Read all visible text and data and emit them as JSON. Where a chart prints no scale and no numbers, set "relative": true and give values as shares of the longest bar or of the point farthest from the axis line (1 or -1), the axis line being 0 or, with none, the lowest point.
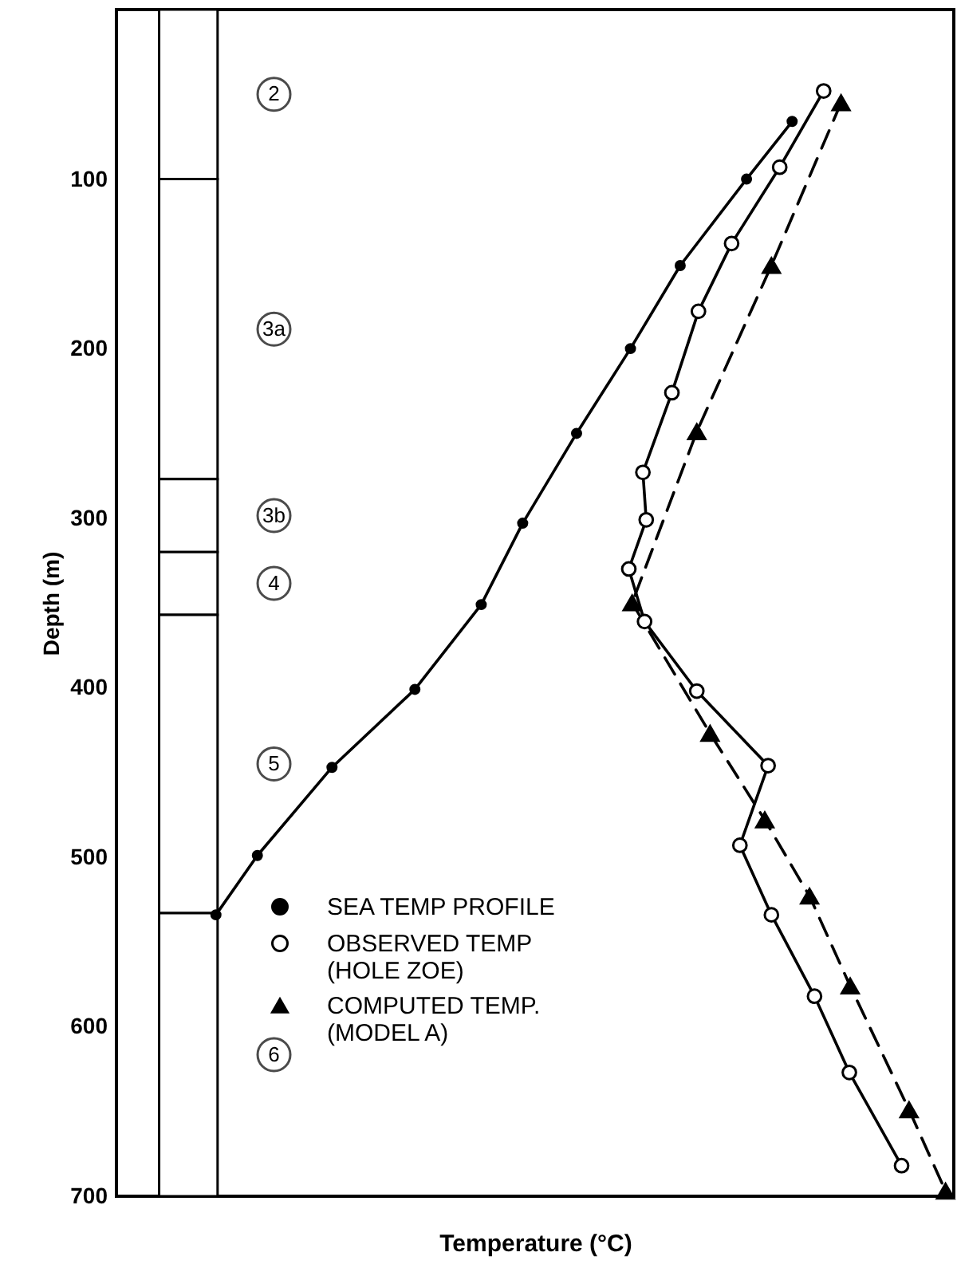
{
  "chart_data": {
    "type": "line",
    "orientation": "horizontal",
    "relative": true,
    "xlabel": "Temperature (°C)",
    "ylabel": "Depth (m)",
    "ylim": [
      700,
      0
    ],
    "yticks": [
      100,
      200,
      300,
      400,
      500,
      600,
      700
    ],
    "legend": "bottom left",
    "series": [
      {
        "name": "SEA TEMP PROFILE",
        "color": "#000000",
        "marker": "circle",
        "line_style": "solid",
        "x": [
          66,
          100,
          151,
          200,
          250,
          303,
          351,
          401,
          447,
          499,
          534
        ],
        "values": [
          0.815,
          0.76,
          0.68,
          0.62,
          0.555,
          0.49,
          0.44,
          0.36,
          0.26,
          0.17,
          0.12
        ]
      },
      {
        "name": "OBSERVED TEMP (HOLE ZOE)",
        "color": "#000000",
        "marker": "circle",
        "line_style": "solid",
        "x": [
          48,
          93,
          138,
          178,
          226,
          273,
          301,
          330,
          361,
          402,
          446,
          493,
          534,
          582,
          627,
          682
        ],
        "values": [
          0.853,
          0.8,
          0.742,
          0.702,
          0.67,
          0.635,
          0.639,
          0.618,
          0.637,
          0.7,
          0.786,
          0.752,
          0.79,
          0.842,
          0.884,
          0.947
        ]
      },
      {
        "name": "COMPUTED TEMP. (MODEL A)",
        "color": "#000000",
        "marker": "triangle",
        "line_style": "dashed",
        "x": [
          55,
          151,
          249,
          350,
          427,
          478,
          523,
          576,
          649,
          697
        ],
        "values": [
          0.874,
          0.79,
          0.7,
          0.622,
          0.716,
          0.782,
          0.836,
          0.885,
          0.956,
          1.0
        ]
      }
    ],
    "bands": [
      {
        "axis": "y",
        "from": 0,
        "to": 100,
        "label": "2"
      },
      {
        "axis": "y",
        "from": 100,
        "to": 277,
        "label": "3a"
      },
      {
        "axis": "y",
        "from": 277,
        "to": 320,
        "label": "3b"
      },
      {
        "axis": "y",
        "from": 320,
        "to": 357,
        "label": "4"
      },
      {
        "axis": "y",
        "from": 357,
        "to": 533,
        "label": "5"
      },
      {
        "axis": "y",
        "from": 533,
        "to": 700,
        "label": "6"
      }
    ]
  }
}
